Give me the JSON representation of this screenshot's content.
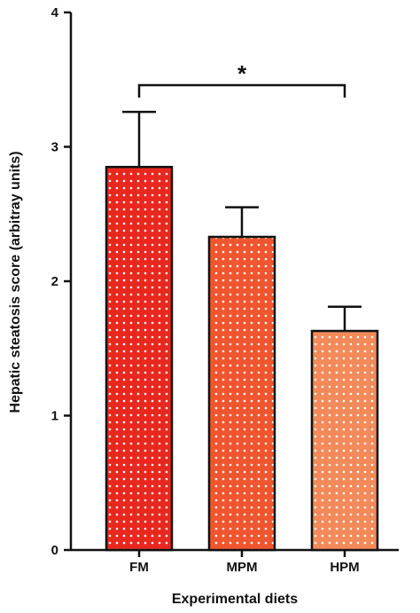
{
  "chart_data": {
    "type": "bar",
    "categories": [
      "FM",
      "MPM",
      "HPM"
    ],
    "values": [
      2.85,
      2.33,
      1.63
    ],
    "errors": [
      0.41,
      0.22,
      0.18
    ],
    "xlabel": "Experimental diets",
    "ylabel": "Hepatic steatosis score (arbitray units)",
    "ylim": [
      0,
      4
    ],
    "yticks": [
      "0",
      "1",
      "2",
      "3",
      "4"
    ],
    "colors": [
      "#e8281e",
      "#ef5630",
      "#f38a5a"
    ],
    "pattern": "white-dots",
    "significance": {
      "from": "FM",
      "to": "HPM",
      "label": "*"
    },
    "grid": false
  }
}
